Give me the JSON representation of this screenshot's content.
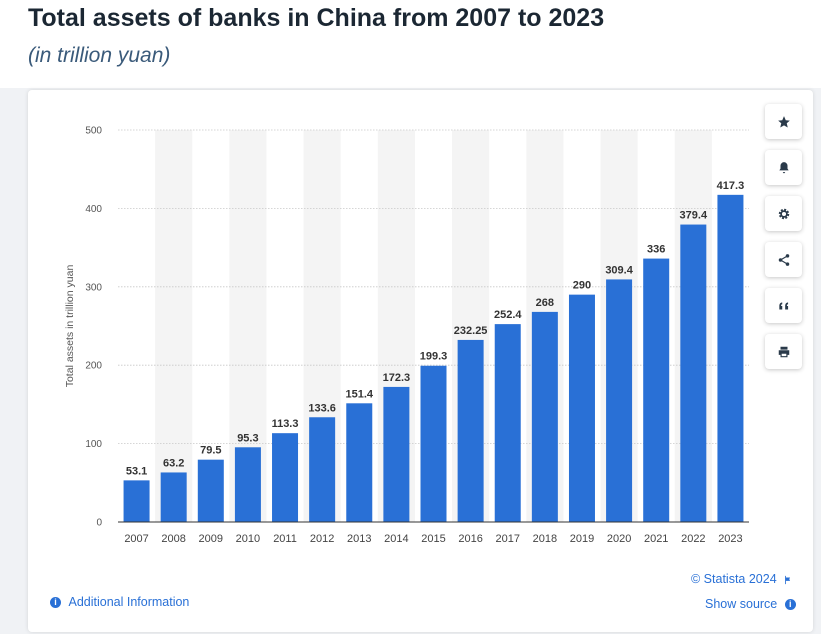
{
  "header": {
    "title": "Total assets of banks in China from 2007 to 2023",
    "subtitle": "(in trillion yuan)"
  },
  "toolbar": {
    "icons": [
      "star-icon",
      "bell-icon",
      "gear-icon",
      "share-icon",
      "quote-icon",
      "print-icon"
    ]
  },
  "footer": {
    "copyright": "© Statista 2024",
    "additional_info": "Additional Information",
    "show_source": "Show source"
  },
  "colors": {
    "bar": "#2970d6",
    "link": "#2970d6",
    "band": "#f4f4f4",
    "grid": "#c8c8c8"
  },
  "chart_data": {
    "type": "bar",
    "title": "Total assets of banks in China from 2007 to 2023",
    "subtitle": "(in trillion yuan)",
    "xlabel": "",
    "ylabel": "Total assets in trillion yuan",
    "ylim": [
      0,
      500
    ],
    "yticks": [
      0,
      100,
      200,
      300,
      400,
      500
    ],
    "categories": [
      "2007",
      "2008",
      "2009",
      "2010",
      "2011",
      "2012",
      "2013",
      "2014",
      "2015",
      "2016",
      "2017",
      "2018",
      "2019",
      "2020",
      "2021",
      "2022",
      "2023"
    ],
    "values": [
      53.1,
      63.2,
      79.5,
      95.3,
      113.3,
      133.6,
      151.4,
      172.3,
      199.3,
      232.25,
      252.4,
      268,
      290,
      309.4,
      336,
      379.4,
      417.3
    ],
    "value_labels": [
      "53.1",
      "63.2",
      "79.5",
      "95.3",
      "113.3",
      "133.6",
      "151.4",
      "172.3",
      "199.3",
      "232.25",
      "252.4",
      "268",
      "290",
      "309.4",
      "336",
      "379.4",
      "417.3"
    ],
    "grid": true,
    "legend": "none"
  }
}
